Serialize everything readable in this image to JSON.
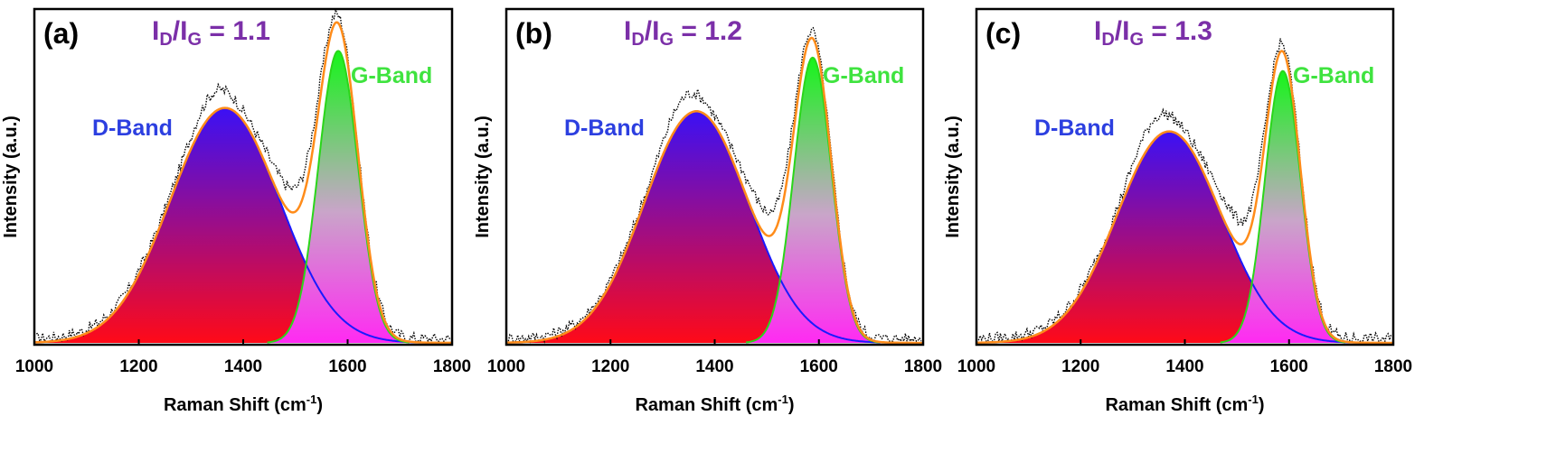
{
  "colors": {
    "d_band_top": "#3b10f5",
    "d_band_bottom": "#ff0a18",
    "g_band_top": "#16f51a",
    "g_band_bottom": "#ff2af2",
    "fit_line": "#ff8c1a",
    "d_outline": "#1a1aff",
    "g_outline": "#2ad61a",
    "raw_data": "#000000",
    "ratio_text": "#7b2fa8",
    "d_label": "#2c3fe0",
    "g_label": "#3fe33f"
  },
  "chart_data": [
    {
      "type": "area",
      "panel_label": "(a)",
      "ratio_prefix": "I",
      "ratio_sub_d": "D",
      "ratio_sep": "/I",
      "ratio_sub_g": "G",
      "ratio_value": " = 1.1",
      "xlabel": "Raman Shift (cm",
      "xlabel_sup": "-1",
      "xlabel_end": ")",
      "ylabel": "Intensity (a.u.)",
      "xlim": [
        1000,
        1800
      ],
      "ylim": [
        0,
        1.0
      ],
      "xticks": [
        1000,
        1200,
        1400,
        1600,
        1800
      ],
      "d_band_label": "D-Band",
      "g_band_label": "G-Band",
      "series": [
        {
          "name": "D-Band",
          "center": 1365,
          "height": 0.7,
          "sigma": 105
        },
        {
          "name": "G-Band",
          "center": 1582,
          "height": 0.87,
          "sigma": 38
        }
      ]
    },
    {
      "type": "area",
      "panel_label": "(b)",
      "ratio_prefix": "I",
      "ratio_sub_d": "D",
      "ratio_sep": "/I",
      "ratio_sub_g": "G",
      "ratio_value": " = 1.2",
      "xlabel": "Raman Shift (cm",
      "xlabel_sup": "-1",
      "xlabel_end": ")",
      "ylabel": "Intensity (a.u.)",
      "xlim": [
        1000,
        1800
      ],
      "ylim": [
        0,
        1.0
      ],
      "xticks": [
        1000,
        1200,
        1400,
        1600,
        1800
      ],
      "d_band_label": "D-Band",
      "g_band_label": "G-Band",
      "series": [
        {
          "name": "D-Band",
          "center": 1365,
          "height": 0.69,
          "sigma": 100
        },
        {
          "name": "G-Band",
          "center": 1588,
          "height": 0.85,
          "sigma": 36
        }
      ]
    },
    {
      "type": "area",
      "panel_label": "(c)",
      "ratio_prefix": "I",
      "ratio_sub_d": "D",
      "ratio_sep": "/I",
      "ratio_sub_g": "G",
      "ratio_value": " = 1.3",
      "xlabel": "Raman Shift (cm",
      "xlabel_sup": "-1",
      "xlabel_end": ")",
      "ylabel": "Intensity (a.u.)",
      "xlim": [
        1000,
        1800
      ],
      "ylim": [
        0,
        1.0
      ],
      "xticks": [
        1000,
        1200,
        1400,
        1600,
        1800
      ],
      "d_band_label": "D-Band",
      "g_band_label": "G-Band",
      "series": [
        {
          "name": "D-Band",
          "center": 1370,
          "height": 0.63,
          "sigma": 100
        },
        {
          "name": "G-Band",
          "center": 1588,
          "height": 0.81,
          "sigma": 34
        }
      ]
    }
  ]
}
